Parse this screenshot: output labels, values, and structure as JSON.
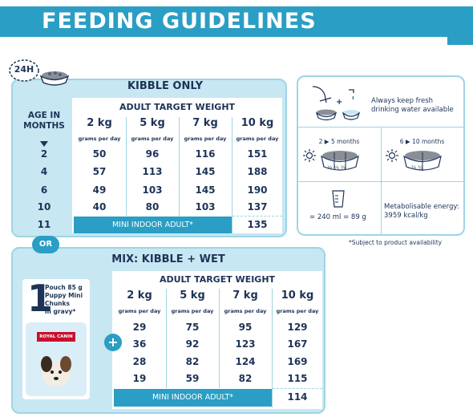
{
  "header": {
    "title": "FEEDING GUIDELINES"
  },
  "badge": {
    "label": "24H"
  },
  "kibble": {
    "title": "KIBBLE ONLY",
    "weights_header": "ADULT TARGET WEIGHT",
    "age_header_line1": "AGE IN",
    "age_header_line2": "MONTHS",
    "weights": [
      "2 kg",
      "5 kg",
      "7 kg",
      "10 kg"
    ],
    "grams_per_day": "grams per day",
    "rows": [
      {
        "age": "2",
        "values": [
          "50",
          "96",
          "116",
          "151"
        ]
      },
      {
        "age": "4",
        "values": [
          "57",
          "113",
          "145",
          "188"
        ]
      },
      {
        "age": "6",
        "values": [
          "49",
          "103",
          "145",
          "190"
        ]
      },
      {
        "age": "10",
        "values": [
          "40",
          "80",
          "103",
          "137"
        ]
      },
      {
        "age": "11",
        "values": [
          "",
          "",
          "",
          "135"
        ]
      }
    ],
    "mini_label": "MINI INDOOR ADULT*"
  },
  "info": {
    "water_line1": "Always keep fresh",
    "water_line2": "drinking water available",
    "period1": "2 ▶ 5 months",
    "period2": "6 ▶ 10 months",
    "third": "⅓",
    "half": "½",
    "measure": "= 240 ml = 89 g",
    "energy_line1": "Metabolisable energy:",
    "energy_line2": "3959 kcal/kg"
  },
  "availability_note": "*Subject to product availability",
  "or_label": "OR",
  "mix": {
    "title": "MIX: KIBBLE + WET",
    "weights_header": "ADULT TARGET WEIGHT",
    "weights": [
      "2 kg",
      "5 kg",
      "7 kg",
      "10 kg"
    ],
    "grams_per_day": "grams per day",
    "pouch_count": "1",
    "pouch_line1": "Pouch 85 g",
    "pouch_line2": "Puppy Mini",
    "pouch_line3": "Chunks",
    "pouch_line4": "in gravy*",
    "brand": "ROYAL CANIN",
    "plus": "+",
    "rows": [
      [
        "29",
        "75",
        "95",
        "129"
      ],
      [
        "36",
        "92",
        "123",
        "167"
      ],
      [
        "28",
        "82",
        "124",
        "169"
      ],
      [
        "19",
        "59",
        "82",
        "115"
      ],
      [
        "",
        "",
        "",
        "114"
      ]
    ],
    "mini_label": "MINI INDOOR ADULT*"
  },
  "colors": {
    "accent": "#2a9ec4",
    "light_blue": "#c7e7f2",
    "navy": "#1d3357"
  }
}
